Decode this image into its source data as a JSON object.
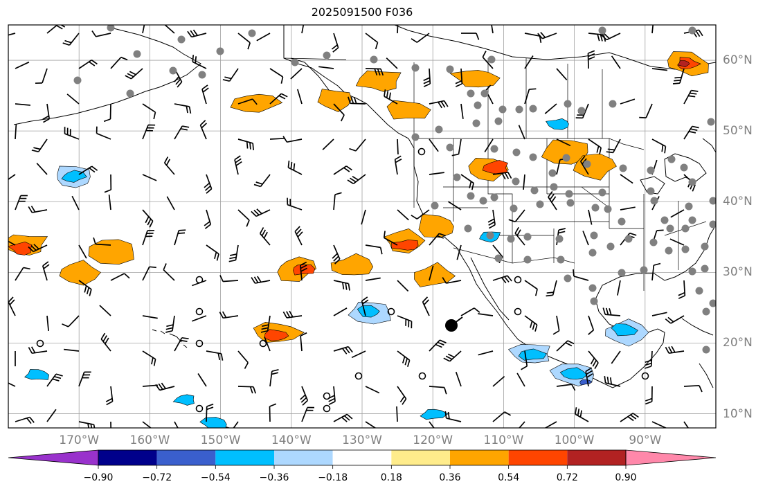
{
  "title": "2025091500 F036",
  "map": {
    "projection": "PlateCarree",
    "extent": {
      "lon_min": -180,
      "lon_max": -80,
      "lat_min": 8,
      "lat_max": 65
    },
    "gridlines": true,
    "lon_ticks": [
      {
        "value": -170,
        "label": "170°W"
      },
      {
        "value": -160,
        "label": "160°W"
      },
      {
        "value": -150,
        "label": "150°W"
      },
      {
        "value": -140,
        "label": "140°W"
      },
      {
        "value": -130,
        "label": "130°W"
      },
      {
        "value": -120,
        "label": "120°W"
      },
      {
        "value": -110,
        "label": "110°W"
      },
      {
        "value": -100,
        "label": "100°W"
      },
      {
        "value": -90,
        "label": "90°W"
      }
    ],
    "lat_ticks": [
      {
        "value": 10,
        "label": "10°N"
      },
      {
        "value": 20,
        "label": "20°N"
      },
      {
        "value": 30,
        "label": "30°N"
      },
      {
        "value": 40,
        "label": "40°N"
      },
      {
        "value": 50,
        "label": "50°N"
      },
      {
        "value": 60,
        "label": "60°N"
      }
    ],
    "colors": {
      "grid": "#a0a0a0",
      "coast": "#000000",
      "border": "#000000",
      "tick_label": "#808080"
    }
  },
  "colorbar": {
    "extend": "both",
    "bounds": [
      -0.9,
      -0.72,
      -0.54,
      -0.36,
      -0.18,
      0.18,
      0.36,
      0.54,
      0.72,
      0.9
    ],
    "labels": [
      "−0.90",
      "−0.72",
      "−0.54",
      "−0.36",
      "−0.18",
      "0.18",
      "0.36",
      "0.54",
      "0.72",
      "0.90"
    ],
    "colors": [
      "#9932cc",
      "#00008b",
      "#3a5fcd",
      "#00bfff",
      "#add8ff",
      "#ffffff",
      "#ffec8b",
      "#ffa500",
      "#ff4500",
      "#b22222",
      "#ff88aa"
    ]
  },
  "contour_regions": [
    {
      "lon": -131.5,
      "lat": 30.8,
      "level": 0.36
    },
    {
      "lon": -124,
      "lat": 34.5,
      "level": 0.36
    },
    {
      "lon": -123.8,
      "lat": 33.8,
      "level": 0.54
    },
    {
      "lon": -119.5,
      "lat": 36.5,
      "level": 0.36
    },
    {
      "lon": -120,
      "lat": 29.5,
      "level": 0.36
    },
    {
      "lon": -142,
      "lat": 21.5,
      "level": 0.36
    },
    {
      "lon": -142,
      "lat": 21.0,
      "level": 0.54
    },
    {
      "lon": -170,
      "lat": 30.0,
      "level": 0.36
    },
    {
      "lon": -165,
      "lat": 33.0,
      "level": 0.36
    },
    {
      "lon": -177.5,
      "lat": 33.8,
      "level": 0.36
    },
    {
      "lon": -178,
      "lat": 33.3,
      "level": 0.54
    },
    {
      "lon": -139.5,
      "lat": 30.5,
      "level": 0.36
    },
    {
      "lon": -138.5,
      "lat": 30.5,
      "level": 0.54
    },
    {
      "lon": -124,
      "lat": 53.0,
      "level": 0.36
    },
    {
      "lon": -134,
      "lat": 54.5,
      "level": 0.36
    },
    {
      "lon": -127.5,
      "lat": 57.0,
      "level": 0.36
    },
    {
      "lon": -114,
      "lat": 57.5,
      "level": 0.36
    },
    {
      "lon": -112,
      "lat": 44.5,
      "level": 0.36
    },
    {
      "lon": -111,
      "lat": 44.8,
      "level": 0.54
    },
    {
      "lon": -101,
      "lat": 47.0,
      "level": 0.36
    },
    {
      "lon": -97,
      "lat": 45.0,
      "level": 0.36
    },
    {
      "lon": -84,
      "lat": 59.5,
      "level": 0.36
    },
    {
      "lon": -84,
      "lat": 59.5,
      "level": 0.54
    },
    {
      "lon": -84.5,
      "lat": 59.5,
      "level": 0.72
    },
    {
      "lon": -145,
      "lat": 54.0,
      "level": 0.36
    },
    {
      "lon": -171,
      "lat": 43.5,
      "level": -0.36
    },
    {
      "lon": -171,
      "lat": 43.5,
      "level": -0.54
    },
    {
      "lon": -106,
      "lat": 18.5,
      "level": -0.36
    },
    {
      "lon": -106,
      "lat": 18.5,
      "level": -0.54
    },
    {
      "lon": -93,
      "lat": 21.5,
      "level": -0.36
    },
    {
      "lon": -93,
      "lat": 21.8,
      "level": -0.54
    },
    {
      "lon": -100,
      "lat": 15.5,
      "level": -0.36
    },
    {
      "lon": -100,
      "lat": 15.5,
      "level": -0.54
    },
    {
      "lon": -98.5,
      "lat": 14.5,
      "level": -0.72
    },
    {
      "lon": -129,
      "lat": 24.5,
      "level": -0.36
    },
    {
      "lon": -129,
      "lat": 24.5,
      "level": -0.54
    },
    {
      "lon": -155,
      "lat": 12.0,
      "level": -0.54
    },
    {
      "lon": -151,
      "lat": 8.5,
      "level": -0.54
    },
    {
      "lon": -176,
      "lat": 15.5,
      "level": -0.54
    },
    {
      "lon": -120,
      "lat": 10.0,
      "level": -0.54
    },
    {
      "lon": -102,
      "lat": 51.0,
      "level": -0.54
    },
    {
      "lon": -112,
      "lat": 35.0,
      "level": -0.54
    }
  ]
}
